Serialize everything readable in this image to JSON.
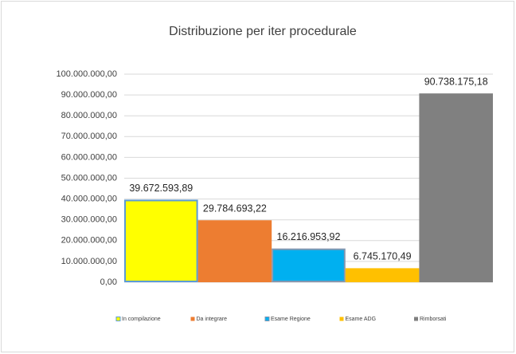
{
  "chart_data": {
    "type": "bar",
    "title": "Distribuzione per iter procedurale",
    "categories": [
      null
    ],
    "series": [
      {
        "name": "In compilazione",
        "color": "#ffff00",
        "border": "#5b9bd5",
        "values": [
          39672593.89
        ],
        "value_labels": [
          "39.672.593,89"
        ]
      },
      {
        "name": "Da integrare",
        "color": "#ed7d31",
        "values": [
          29784693.22
        ],
        "value_labels": [
          "29.784.693,22"
        ]
      },
      {
        "name": "Esame Regione",
        "color": "#00b0f0",
        "border": "#8497b0",
        "values": [
          16216953.92
        ],
        "value_labels": [
          "16.216.953,92"
        ]
      },
      {
        "name": "Esame ADG",
        "color": "#ffc000",
        "values": [
          6745170.49
        ],
        "value_labels": [
          "6.745.170,49"
        ]
      },
      {
        "name": "Rimborsati",
        "color": "#808080",
        "values": [
          90738175.18
        ],
        "value_labels": [
          "90.738.175,18"
        ]
      }
    ],
    "ylim": [
      0,
      100000000
    ],
    "yticks": [
      {
        "value": 0,
        "label": "0,00"
      },
      {
        "value": 10000000,
        "label": "10.000.000,00"
      },
      {
        "value": 20000000,
        "label": "20.000.000,00"
      },
      {
        "value": 30000000,
        "label": "30.000.000,00"
      },
      {
        "value": 40000000,
        "label": "40.000.000,00"
      },
      {
        "value": 50000000,
        "label": "50.000.000,00"
      },
      {
        "value": 60000000,
        "label": "60.000.000,00"
      },
      {
        "value": 70000000,
        "label": "70.000.000,00"
      },
      {
        "value": 80000000,
        "label": "80.000.000,00"
      },
      {
        "value": 90000000,
        "label": "90.000.000,00"
      },
      {
        "value": 100000000,
        "label": "100.000.000,00"
      }
    ],
    "grid": true,
    "legend": "bottom"
  }
}
